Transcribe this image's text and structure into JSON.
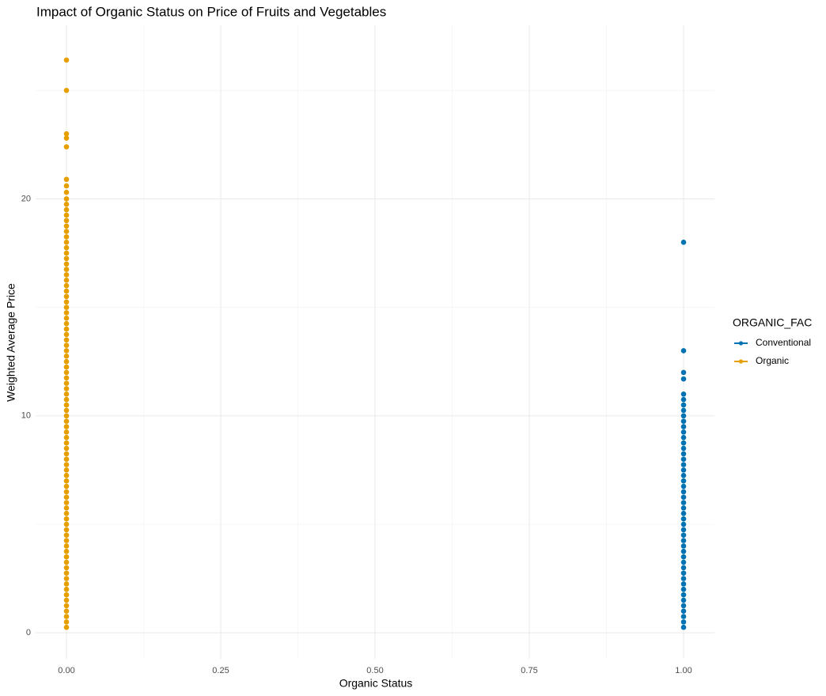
{
  "chart_data": {
    "type": "scatter",
    "title": "Impact of Organic Status on Price of Fruits and Vegetables",
    "x_label": "Organic Status",
    "y_label": "Weighted Average Price",
    "legend_title": "ORGANIC_FAC",
    "legend_position": "right",
    "grid": true,
    "xlim": [
      -0.05,
      1.05
    ],
    "ylim": [
      -1.2,
      28
    ],
    "xticks": [
      {
        "value": 0,
        "label": "0.00"
      },
      {
        "value": 0.25,
        "label": "0.25"
      },
      {
        "value": 0.5,
        "label": "0.50"
      },
      {
        "value": 0.75,
        "label": "0.75"
      },
      {
        "value": 1,
        "label": "1.00"
      }
    ],
    "yticks": [
      0,
      10,
      20
    ],
    "x_minor_grid": [
      0.125,
      0.375,
      0.625,
      0.875
    ],
    "y_minor_grid": [
      5,
      15,
      25
    ],
    "series": [
      {
        "name": "Conventional",
        "color": "#0072B2",
        "x": [
          1,
          1,
          1,
          1,
          1,
          1,
          1,
          1,
          1,
          1,
          1,
          1,
          1,
          1,
          1,
          1,
          1,
          1,
          1,
          1,
          1,
          1,
          1,
          1,
          1,
          1,
          1,
          1,
          1,
          1,
          1,
          1,
          1,
          1,
          1,
          1,
          1,
          1,
          1,
          1,
          1,
          1,
          1,
          1,
          1,
          1,
          1,
          1
        ],
        "values": [
          0.25,
          0.5,
          0.75,
          1,
          1.25,
          1.5,
          1.75,
          2,
          2.25,
          2.5,
          2.75,
          3,
          3.25,
          3.5,
          3.75,
          4,
          4.25,
          4.5,
          4.75,
          5,
          5.25,
          5.5,
          5.75,
          6,
          6.25,
          6.5,
          6.75,
          7,
          7.25,
          7.5,
          7.75,
          8,
          8.25,
          8.5,
          8.75,
          9,
          9.25,
          9.5,
          9.75,
          10,
          10.25,
          10.5,
          10.75,
          11,
          11.7,
          12,
          13,
          18
        ]
      },
      {
        "name": "Organic",
        "color": "#E69F00",
        "x": [
          0,
          0,
          0,
          0,
          0,
          0,
          0,
          0,
          0,
          0,
          0,
          0,
          0,
          0,
          0,
          0,
          0,
          0,
          0,
          0,
          0,
          0,
          0,
          0,
          0,
          0,
          0,
          0,
          0,
          0,
          0,
          0,
          0,
          0,
          0,
          0,
          0,
          0,
          0,
          0,
          0,
          0,
          0,
          0,
          0,
          0,
          0,
          0,
          0,
          0,
          0,
          0,
          0,
          0,
          0,
          0,
          0,
          0,
          0,
          0,
          0,
          0,
          0,
          0,
          0,
          0,
          0,
          0,
          0,
          0,
          0,
          0,
          0,
          0,
          0,
          0,
          0,
          0,
          0,
          0,
          0,
          0,
          0,
          0,
          0,
          0,
          0,
          0
        ],
        "values": [
          0.25,
          0.5,
          0.75,
          1,
          1.25,
          1.5,
          1.75,
          2,
          2.25,
          2.5,
          2.75,
          3,
          3.25,
          3.5,
          3.75,
          4,
          4.25,
          4.5,
          4.75,
          5,
          5.25,
          5.5,
          5.75,
          6,
          6.25,
          6.5,
          6.75,
          7,
          7.25,
          7.5,
          7.75,
          8,
          8.25,
          8.5,
          8.75,
          9,
          9.25,
          9.5,
          9.75,
          10,
          10.25,
          10.5,
          10.75,
          11,
          11.25,
          11.5,
          11.75,
          12,
          12.25,
          12.5,
          12.75,
          13,
          13.25,
          13.5,
          13.75,
          14,
          14.25,
          14.5,
          14.75,
          15,
          15.25,
          15.5,
          15.75,
          16,
          16.25,
          16.5,
          16.75,
          17,
          17.25,
          17.5,
          17.75,
          18,
          18.25,
          18.5,
          18.75,
          19,
          19.25,
          19.5,
          19.75,
          20,
          20.3,
          20.6,
          20.9,
          22.4,
          22.8,
          23,
          25,
          26.4
        ]
      }
    ]
  }
}
